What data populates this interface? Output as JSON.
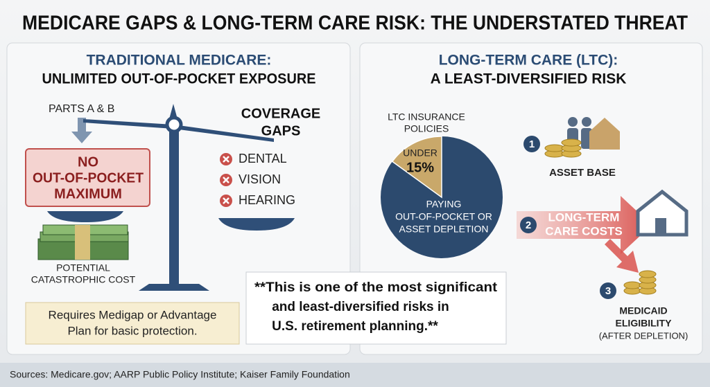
{
  "header": {
    "title": "MEDICARE GAPS & LONG-TERM CARE RISK: THE UNDERSTATED THREAT"
  },
  "left": {
    "title": "TRADITIONAL MEDICARE:",
    "subtitle": "UNLIMITED OUT-OF-POCKET EXPOSURE",
    "parts_label": "PARTS A & B",
    "warning": [
      "NO",
      "OUT-OF-POCKET",
      "MAXIMUM"
    ],
    "cost_label": [
      "POTENTIAL",
      "CATASTROPHIC COST"
    ],
    "gaps_title": [
      "COVERAGE",
      "GAPS"
    ],
    "gaps": [
      "DENTAL",
      "VISION",
      "HEARING"
    ],
    "note": [
      "Requires Medigap or Advantage",
      "Plan for basic protection."
    ]
  },
  "callout": [
    "**This is one of the most significant",
    "and least-diversified risks in",
    "U.S. retirement planning.**"
  ],
  "right": {
    "title": "LONG-TERM CARE (LTC):",
    "subtitle": "A LEAST-DIVERSIFIED RISK",
    "pie": {
      "title": [
        "LTC INSURANCE",
        "POLICIES"
      ],
      "prefix": "UNDER",
      "value": 15,
      "value_label": "15%",
      "rest_label": [
        "PAYING",
        "OUT-OF-POCKET OR",
        "ASSET DEPLETION"
      ]
    },
    "steps": [
      {
        "number": "1",
        "label": [
          "ASSET BASE"
        ]
      },
      {
        "number": "2",
        "label": [
          "LONG-TERM",
          "CARE COSTS"
        ]
      },
      {
        "number": "3",
        "label": [
          "MEDICAID",
          "ELIGIBILITY",
          "(AFTER DEPLETION)"
        ]
      }
    ]
  },
  "footer": {
    "sources": "Sources: Medicare.gov; AARP Public Policy Institute; Kaiser Family Foundation"
  }
}
